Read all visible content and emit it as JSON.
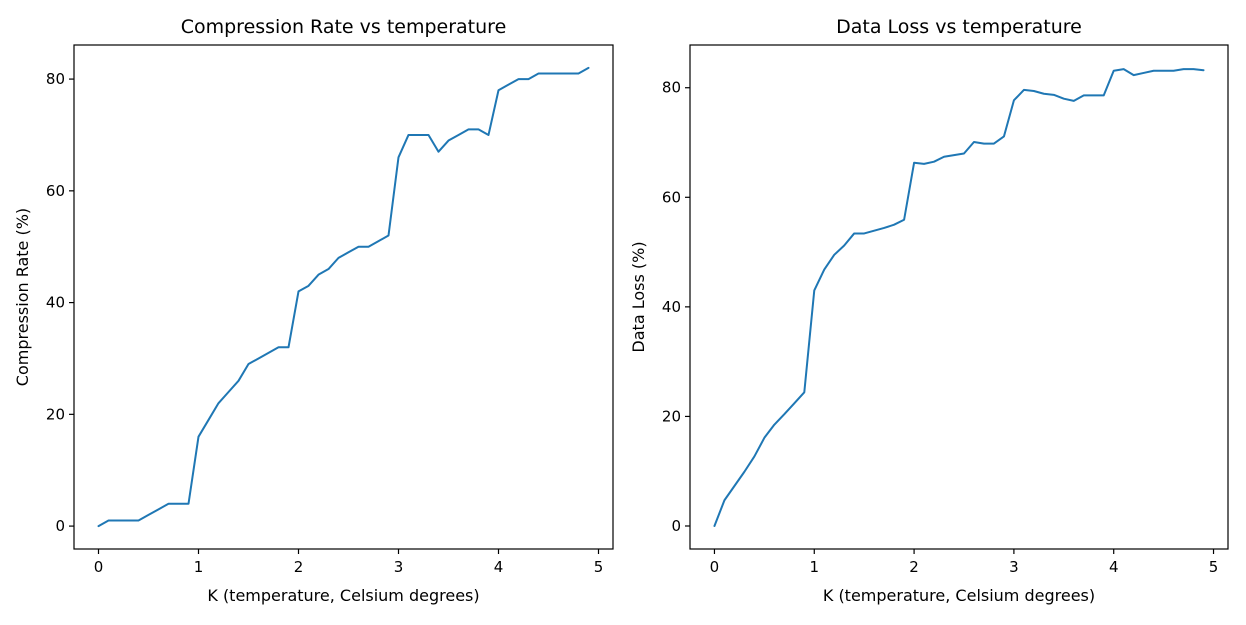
{
  "figure": {
    "background": "#ffffff",
    "line_color": "#1f77b4"
  },
  "chart_data": [
    {
      "type": "line",
      "title": "Compression Rate vs temperature",
      "xlabel": "K (temperature, Celsium degrees)",
      "ylabel": "Compression Rate (%)",
      "xlim": [
        -0.245,
        5.145
      ],
      "ylim": [
        -4.1,
        86.1
      ],
      "xticks": [
        0,
        1,
        2,
        3,
        4,
        5
      ],
      "yticks": [
        0,
        20,
        40,
        60,
        80
      ],
      "grid": false,
      "series": [
        {
          "x": [
            0.0,
            0.1,
            0.2,
            0.3,
            0.4,
            0.5,
            0.6,
            0.7,
            0.8,
            0.9,
            1.0,
            1.1,
            1.2,
            1.3,
            1.4,
            1.5,
            1.6,
            1.7,
            1.8,
            1.9,
            2.0,
            2.1,
            2.2,
            2.3,
            2.4,
            2.5,
            2.6,
            2.7,
            2.8,
            2.9,
            3.0,
            3.1,
            3.2,
            3.3,
            3.4,
            3.5,
            3.6,
            3.7,
            3.8,
            3.9,
            4.0,
            4.1,
            4.2,
            4.3,
            4.4,
            4.5,
            4.6,
            4.7,
            4.8,
            4.9
          ],
          "y": [
            0,
            1,
            1,
            1,
            1,
            2,
            3,
            4,
            4,
            4,
            16,
            19,
            22,
            24,
            26,
            29,
            30,
            31,
            32,
            32,
            42,
            43,
            45,
            46,
            48,
            49,
            50,
            50,
            51,
            52,
            66,
            70,
            70,
            70,
            67,
            69,
            70,
            71,
            71,
            70,
            78,
            79,
            80,
            80,
            81,
            81,
            81,
            81,
            81,
            82
          ]
        }
      ]
    },
    {
      "type": "line",
      "title": "Data Loss vs temperature",
      "xlabel": "K (temperature, Celsium degrees)",
      "ylabel": "Data Loss (%)",
      "xlim": [
        -0.245,
        5.145
      ],
      "ylim": [
        -4.2,
        87.8
      ],
      "xticks": [
        0,
        1,
        2,
        3,
        4,
        5
      ],
      "yticks": [
        0,
        20,
        40,
        60,
        80
      ],
      "grid": false,
      "series": [
        {
          "x": [
            0.0,
            0.1,
            0.2,
            0.3,
            0.4,
            0.5,
            0.6,
            0.7,
            0.8,
            0.9,
            1.0,
            1.1,
            1.2,
            1.3,
            1.4,
            1.5,
            1.6,
            1.7,
            1.8,
            1.9,
            2.0,
            2.1,
            2.2,
            2.3,
            2.4,
            2.5,
            2.6,
            2.7,
            2.8,
            2.9,
            3.0,
            3.1,
            3.2,
            3.3,
            3.4,
            3.5,
            3.6,
            3.7,
            3.8,
            3.9,
            4.0,
            4.1,
            4.2,
            4.3,
            4.4,
            4.5,
            4.6,
            4.7,
            4.8,
            4.9
          ],
          "y": [
            0,
            4.7,
            7.3,
            9.9,
            12.7,
            16.1,
            18.5,
            20.4,
            22.4,
            24.4,
            43.0,
            46.8,
            49.5,
            51.2,
            53.4,
            53.4,
            53.9,
            54.4,
            55.0,
            55.9,
            66.3,
            66.1,
            66.5,
            67.4,
            67.7,
            68.0,
            70.1,
            69.8,
            69.8,
            71.1,
            77.7,
            79.6,
            79.4,
            78.9,
            78.7,
            78.0,
            77.6,
            78.6,
            78.6,
            78.6,
            83.1,
            83.4,
            82.3,
            82.7,
            83.1,
            83.1,
            83.1,
            83.4,
            83.4,
            83.2
          ]
        }
      ]
    }
  ]
}
